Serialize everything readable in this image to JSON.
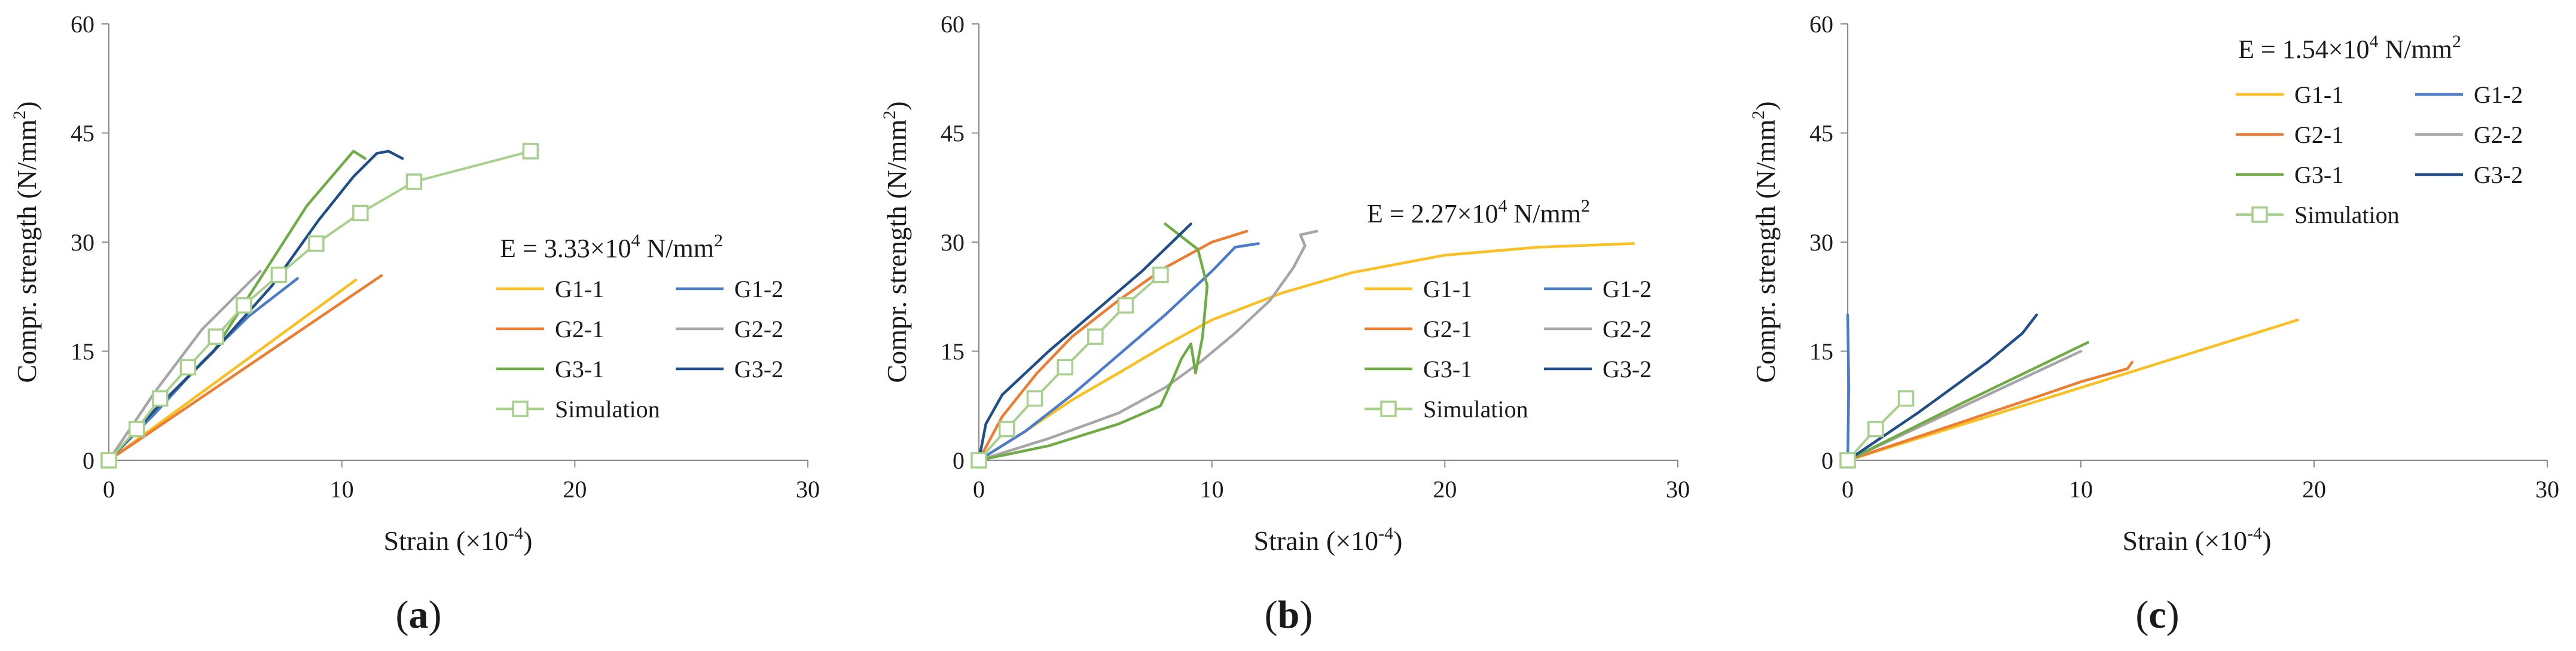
{
  "colors": {
    "G1-1": "#fbbf1f",
    "G1-2": "#4a7cc9",
    "G2-1": "#ec7d31",
    "G2-2": "#a6a6a6",
    "G3-1": "#6fac45",
    "G3-2": "#1f4e89",
    "Simulation": "#a8d08d",
    "axis": "#8c8c8c"
  },
  "chart_data": [
    {
      "type": "line",
      "panel_label": "(a)",
      "label_paren_open": "(",
      "label_letter": "a",
      "label_paren_close": ")",
      "ylabel_main": "Compr. strength (N/mm",
      "ylabel_sup": "2",
      "ylabel_end": ")",
      "xlabel_main": "Strain (×10",
      "xlabel_sup": "-4",
      "xlabel_end": ")",
      "xlim": [
        0,
        30
      ],
      "ylim": [
        0,
        60
      ],
      "xticks": [
        "0",
        "10",
        "20",
        "30"
      ],
      "yticks": [
        "0",
        "15",
        "30",
        "45",
        "60"
      ],
      "annotation_main": "E = 3.33×10",
      "annotation_sup": "4",
      "annotation_end": " N/mm",
      "annotation_sup2": "2",
      "legend": [
        "G1-1",
        "G1-2",
        "G2-1",
        "G2-2",
        "G3-1",
        "G3-2",
        "Simulation"
      ],
      "series": [
        {
          "name": "G1-1",
          "x": [
            0,
            10.6
          ],
          "y": [
            0,
            24.8
          ]
        },
        {
          "name": "G1-2",
          "x": [
            0,
            2,
            4,
            6,
            8.1
          ],
          "y": [
            0,
            6.5,
            13.5,
            19.8,
            25
          ]
        },
        {
          "name": "G2-1",
          "x": [
            0,
            11.7
          ],
          "y": [
            0,
            25.4
          ]
        },
        {
          "name": "G2-2",
          "x": [
            0,
            2,
            4,
            6.5
          ],
          "y": [
            0,
            9.5,
            18,
            26
          ]
        },
        {
          "name": "G3-1",
          "x": [
            0,
            2,
            4.5,
            6.5,
            8.5,
            10.5,
            11
          ],
          "y": [
            0,
            7,
            15,
            25,
            35,
            42.5,
            41.5
          ]
        },
        {
          "name": "G3-2",
          "x": [
            0,
            2,
            4.5,
            7,
            9,
            10.5,
            11.5,
            12,
            12.6
          ],
          "y": [
            0,
            7,
            15,
            24,
            33,
            39,
            42.2,
            42.5,
            41.5
          ]
        },
        {
          "name": "Simulation",
          "x": [
            0,
            1.2,
            2.2,
            3.4,
            4.6,
            5.8,
            7.3,
            8.9,
            10.8,
            13.1,
            18.1
          ],
          "y": [
            0,
            4.3,
            8.5,
            12.8,
            17,
            21.3,
            25.5,
            29.8,
            34,
            38.3,
            42.5
          ]
        }
      ]
    },
    {
      "type": "line",
      "panel_label": "(b)",
      "label_paren_open": "(",
      "label_letter": "b",
      "label_paren_close": ")",
      "ylabel_main": "Compr. strength (N/mm",
      "ylabel_sup": "2",
      "ylabel_end": ")",
      "xlabel_main": "Strain (×10",
      "xlabel_sup": "-4",
      "xlabel_end": ")",
      "xlim": [
        0,
        30
      ],
      "ylim": [
        0,
        60
      ],
      "xticks": [
        "0",
        "10",
        "20",
        "30"
      ],
      "yticks": [
        "0",
        "15",
        "30",
        "45",
        "60"
      ],
      "annotation_main": "E = 2.27×10",
      "annotation_sup": "4",
      "annotation_end": " N/mm",
      "annotation_sup2": "2",
      "legend": [
        "G1-1",
        "G1-2",
        "G2-1",
        "G2-2",
        "G3-1",
        "G3-2",
        "Simulation"
      ],
      "series": [
        {
          "name": "G1-1",
          "x": [
            0,
            2,
            4,
            6,
            8,
            10,
            13,
            16,
            20,
            24,
            28.1
          ],
          "y": [
            0,
            4,
            8.3,
            12,
            15.8,
            19.3,
            23,
            25.8,
            28.2,
            29.3,
            29.8
          ]
        },
        {
          "name": "G1-2",
          "x": [
            0,
            2,
            4,
            6,
            8,
            10,
            11,
            12
          ],
          "y": [
            0,
            4,
            9,
            14.5,
            20,
            26,
            29.3,
            29.8
          ]
        },
        {
          "name": "G2-1",
          "x": [
            0,
            1,
            2.5,
            4,
            6,
            8,
            10,
            11.5
          ],
          "y": [
            0,
            6,
            12,
            17,
            22,
            26.5,
            30,
            31.5
          ]
        },
        {
          "name": "G2-2",
          "x": [
            0,
            3,
            6,
            8,
            9.5,
            11,
            12.5,
            13.5,
            14,
            13.8,
            14.5
          ],
          "y": [
            0,
            3,
            6.5,
            10,
            13.5,
            17.5,
            22,
            26.5,
            29.5,
            31,
            31.5
          ]
        },
        {
          "name": "G3-1",
          "x": [
            0,
            3,
            6,
            7.8,
            8.3,
            8.7,
            9.1,
            9.3,
            9.6,
            9.8,
            9.4,
            8.0
          ],
          "y": [
            0,
            2,
            5,
            7.5,
            11,
            14,
            16,
            12,
            17,
            24,
            29,
            32.5
          ]
        },
        {
          "name": "G3-2",
          "x": [
            0,
            0.3,
            1,
            3,
            5,
            7,
            9.1
          ],
          "y": [
            0,
            5,
            9,
            15,
            20.5,
            26,
            32.5
          ]
        },
        {
          "name": "Simulation",
          "x": [
            0,
            1.2,
            2.4,
            3.7,
            5,
            6.3,
            7.8
          ],
          "y": [
            0,
            4.3,
            8.5,
            12.8,
            17,
            21.3,
            25.5
          ]
        }
      ]
    },
    {
      "type": "line",
      "panel_label": "(c)",
      "label_paren_open": "(",
      "label_letter": "c",
      "label_paren_close": ")",
      "ylabel_main": "Compr. strength (N/mm",
      "ylabel_sup": "2",
      "ylabel_end": ")",
      "xlabel_main": "Strain (×10",
      "xlabel_sup": "-4",
      "xlabel_end": ")",
      "xlim": [
        0,
        30
      ],
      "ylim": [
        0,
        60
      ],
      "xticks": [
        "0",
        "10",
        "20",
        "30"
      ],
      "yticks": [
        "0",
        "15",
        "30",
        "45",
        "60"
      ],
      "annotation_main": "E = 1.54×10",
      "annotation_sup": "4",
      "annotation_end": " N/mm",
      "annotation_sup2": "2",
      "legend": [
        "G1-1",
        "G1-2",
        "G2-1",
        "G2-2",
        "G3-1",
        "G3-2",
        "Simulation"
      ],
      "series": [
        {
          "name": "G1-1",
          "x": [
            0,
            19.3
          ],
          "y": [
            0,
            19.3
          ]
        },
        {
          "name": "G1-2",
          "x": [
            0,
            0.05,
            0
          ],
          "y": [
            0,
            10,
            20
          ]
        },
        {
          "name": "G2-1",
          "x": [
            0,
            4,
            8,
            10,
            12,
            12.2
          ],
          "y": [
            0,
            4.3,
            8.6,
            10.8,
            12.6,
            13.5
          ]
        },
        {
          "name": "G2-2",
          "x": [
            0,
            5,
            10
          ],
          "y": [
            0,
            7.5,
            15
          ]
        },
        {
          "name": "G3-1",
          "x": [
            0,
            5,
            10.3
          ],
          "y": [
            0,
            8,
            16.2
          ]
        },
        {
          "name": "G3-2",
          "x": [
            0,
            3,
            6,
            7.5,
            8.1
          ],
          "y": [
            0,
            6.5,
            13.5,
            17.5,
            20
          ]
        },
        {
          "name": "Simulation",
          "x": [
            0,
            1.2,
            2.5
          ],
          "y": [
            0,
            4.3,
            8.5
          ]
        }
      ]
    }
  ]
}
